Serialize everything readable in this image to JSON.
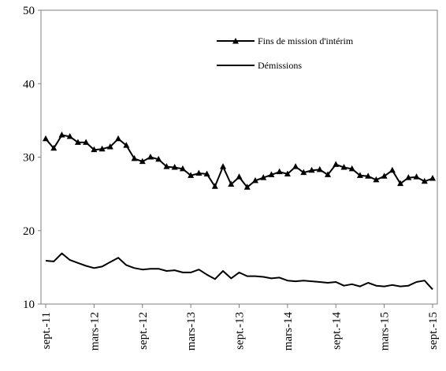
{
  "chart_data": {
    "type": "line",
    "title": "",
    "xlabel": "",
    "ylabel": "",
    "ylim": [
      10,
      50
    ],
    "yticks": [
      10,
      20,
      30,
      40,
      50
    ],
    "grid": false,
    "legend_position": "top-right",
    "x_tick_labels": [
      "sept.-11",
      "mars-12",
      "sept.-12",
      "mars-13",
      "sept.-13",
      "mars-14",
      "sept.-14",
      "mars-15",
      "sept.-15"
    ],
    "x": [
      "2011-09",
      "2011-10",
      "2011-11",
      "2011-12",
      "2012-01",
      "2012-02",
      "2012-03",
      "2012-04",
      "2012-05",
      "2012-06",
      "2012-07",
      "2012-08",
      "2012-09",
      "2012-10",
      "2012-11",
      "2012-12",
      "2013-01",
      "2013-02",
      "2013-03",
      "2013-04",
      "2013-05",
      "2013-06",
      "2013-07",
      "2013-08",
      "2013-09",
      "2013-10",
      "2013-11",
      "2013-12",
      "2014-01",
      "2014-02",
      "2014-03",
      "2014-04",
      "2014-05",
      "2014-06",
      "2014-07",
      "2014-08",
      "2014-09",
      "2014-10",
      "2014-11",
      "2014-12",
      "2015-01",
      "2015-02",
      "2015-03",
      "2015-04",
      "2015-05",
      "2015-06",
      "2015-07",
      "2015-08",
      "2015-09"
    ],
    "series": [
      {
        "name": "Fins de mission d'intérim",
        "marker": "triangle",
        "color": "#000000",
        "values": [
          32.5,
          31.2,
          33.0,
          32.8,
          32.0,
          32.0,
          31.0,
          31.1,
          31.4,
          32.5,
          31.6,
          29.8,
          29.4,
          30.0,
          29.7,
          28.7,
          28.6,
          28.4,
          27.5,
          27.8,
          27.7,
          26.0,
          28.7,
          26.3,
          27.3,
          25.9,
          26.8,
          27.2,
          27.6,
          28.0,
          27.7,
          28.7,
          27.9,
          28.2,
          28.3,
          27.6,
          29.0,
          28.6,
          28.4,
          27.5,
          27.4,
          26.9,
          27.4,
          28.2,
          26.4,
          27.2,
          27.3,
          26.7,
          27.1
        ]
      },
      {
        "name": "Démissions",
        "marker": "none",
        "color": "#000000",
        "values": [
          15.9,
          15.8,
          16.9,
          16.0,
          15.6,
          15.2,
          14.9,
          15.1,
          15.7,
          16.3,
          15.3,
          14.9,
          14.7,
          14.8,
          14.8,
          14.5,
          14.6,
          14.3,
          14.3,
          14.7,
          14.0,
          13.4,
          14.5,
          13.5,
          14.3,
          13.8,
          13.8,
          13.7,
          13.5,
          13.6,
          13.2,
          13.1,
          13.2,
          13.1,
          13.0,
          12.9,
          13.0,
          12.5,
          12.7,
          12.4,
          12.9,
          12.5,
          12.4,
          12.6,
          12.4,
          12.5,
          13.0,
          13.2,
          12.0
        ]
      }
    ]
  }
}
